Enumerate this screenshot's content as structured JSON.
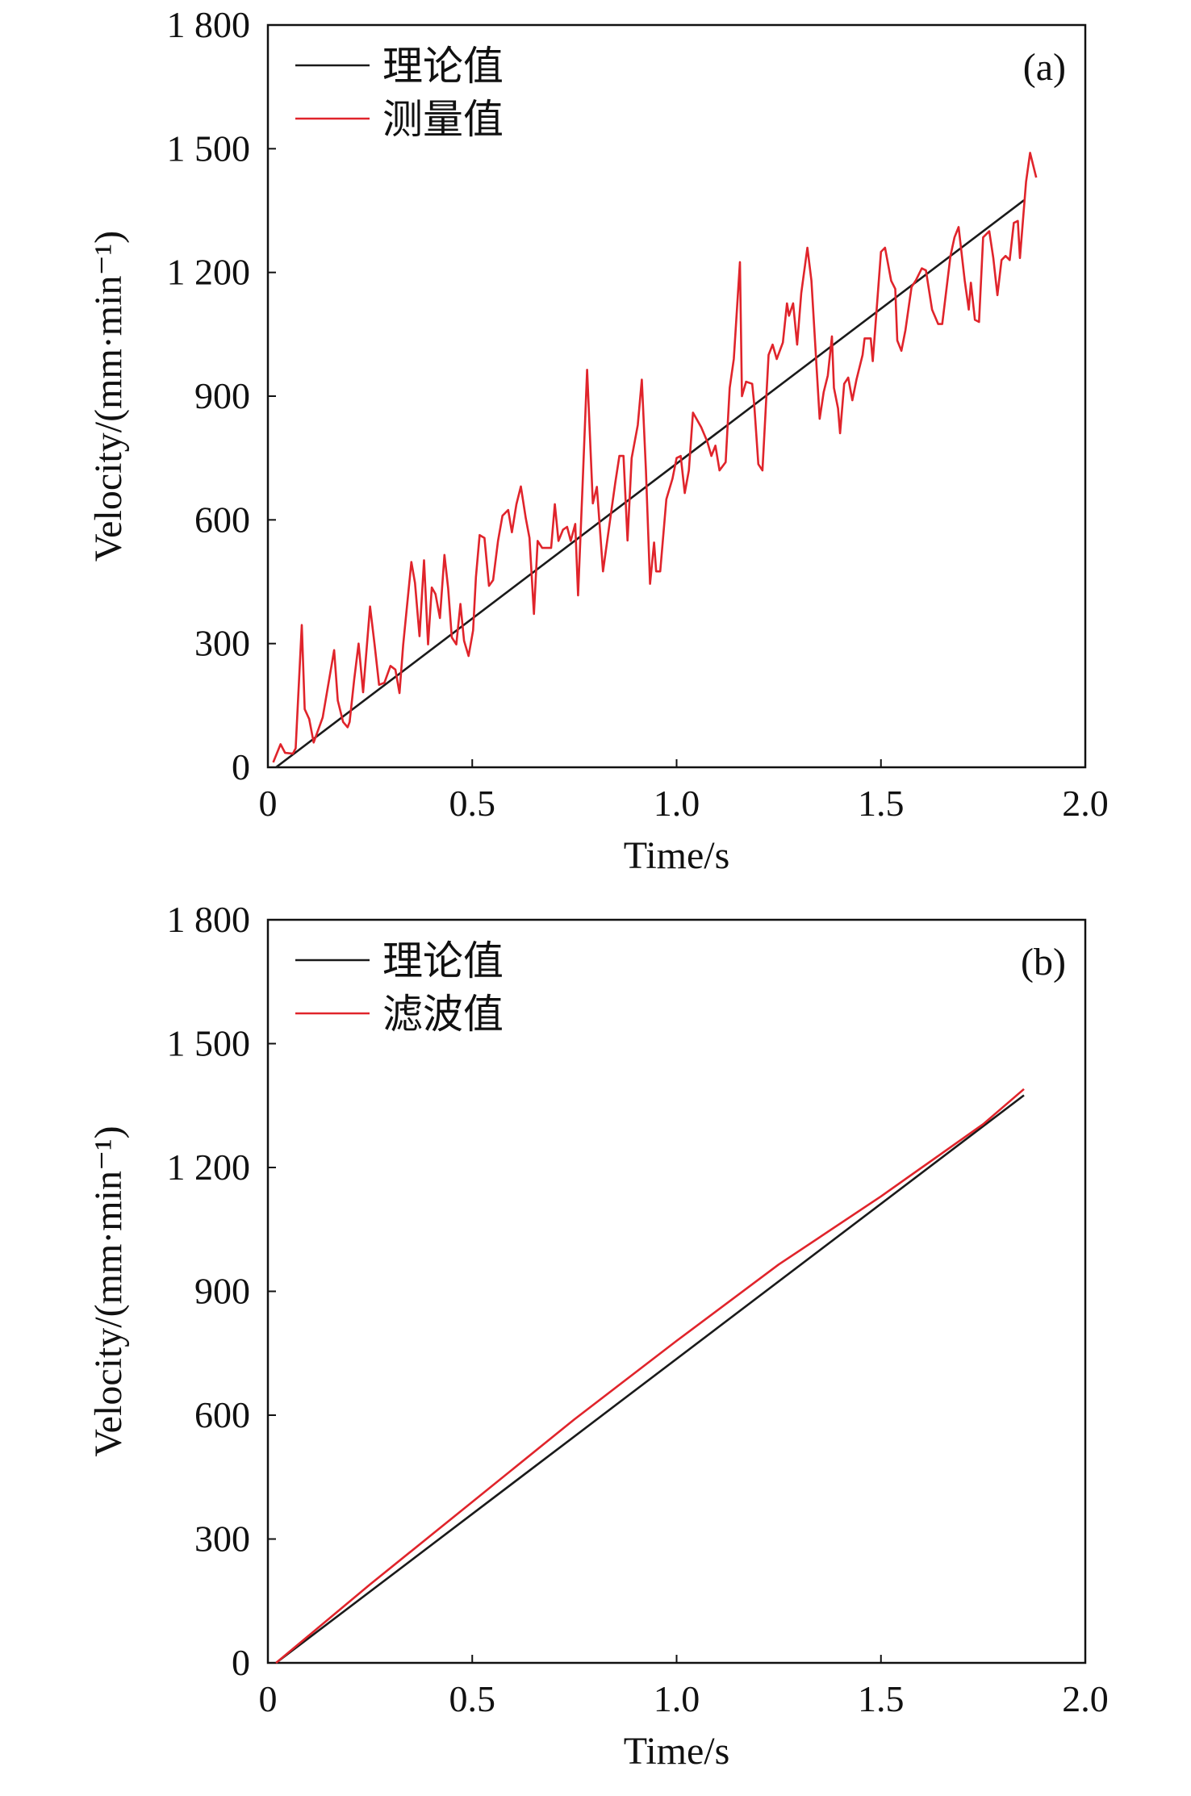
{
  "colors": {
    "theory": "#1a1a1a",
    "measured": "#e0242b",
    "axis": "#111111"
  },
  "chart_data": [
    {
      "type": "line",
      "panel_label": "(a)",
      "xlabel": "Time/s",
      "ylabel": "Velocity/(mm·min⁻¹)",
      "xlim": [
        0,
        2.0
      ],
      "ylim": [
        0,
        1800
      ],
      "xticks": [
        0,
        0.5,
        1.0,
        1.5,
        2.0
      ],
      "xtick_labels": [
        "0",
        "0.5",
        "1.0",
        "1.5",
        "2.0"
      ],
      "yticks": [
        0,
        300,
        600,
        900,
        1200,
        1500,
        1800
      ],
      "ytick_labels": [
        "0",
        "300",
        "600",
        "900",
        "1 200",
        "1 500",
        "1 800"
      ],
      "legend_position": "top-left",
      "series": [
        {
          "name": "理论值",
          "color_key": "theory",
          "x": [
            0.02,
            1.85
          ],
          "y": [
            0,
            1375
          ]
        },
        {
          "name": "测量值",
          "color_key": "measured",
          "x": [
            0.013,
            0.031,
            0.042,
            0.061,
            0.068,
            0.083,
            0.09,
            0.101,
            0.112,
            0.134,
            0.162,
            0.171,
            0.184,
            0.195,
            0.2,
            0.211,
            0.222,
            0.233,
            0.25,
            0.261,
            0.272,
            0.285,
            0.3,
            0.312,
            0.322,
            0.331,
            0.351,
            0.36,
            0.371,
            0.382,
            0.392,
            0.401,
            0.41,
            0.421,
            0.432,
            0.441,
            0.45,
            0.461,
            0.471,
            0.48,
            0.491,
            0.502,
            0.509,
            0.518,
            0.53,
            0.541,
            0.551,
            0.563,
            0.574,
            0.588,
            0.597,
            0.608,
            0.619,
            0.631,
            0.64,
            0.651,
            0.66,
            0.671,
            0.693,
            0.702,
            0.711,
            0.722,
            0.732,
            0.741,
            0.752,
            0.759,
            0.77,
            0.781,
            0.795,
            0.805,
            0.82,
            0.84,
            0.85,
            0.86,
            0.87,
            0.88,
            0.89,
            0.905,
            0.915,
            0.925,
            0.935,
            0.945,
            0.95,
            0.96,
            0.975,
            0.99,
            1.0,
            1.01,
            1.02,
            1.03,
            1.04,
            1.06,
            1.075,
            1.085,
            1.095,
            1.105,
            1.12,
            1.13,
            1.14,
            1.155,
            1.16,
            1.17,
            1.185,
            1.19,
            1.2,
            1.21,
            1.225,
            1.235,
            1.245,
            1.26,
            1.27,
            1.275,
            1.285,
            1.295,
            1.305,
            1.32,
            1.33,
            1.35,
            1.36,
            1.37,
            1.38,
            1.385,
            1.395,
            1.4,
            1.41,
            1.42,
            1.43,
            1.44,
            1.455,
            1.46,
            1.475,
            1.48,
            1.5,
            1.51,
            1.525,
            1.535,
            1.54,
            1.55,
            1.56,
            1.575,
            1.585,
            1.6,
            1.61,
            1.625,
            1.64,
            1.65,
            1.67,
            1.68,
            1.69,
            1.705,
            1.715,
            1.72,
            1.73,
            1.74,
            1.75,
            1.765,
            1.775,
            1.785,
            1.795,
            1.805,
            1.815,
            1.825,
            1.835,
            1.84,
            1.855,
            1.865,
            1.88
          ],
          "y": [
            12,
            56,
            35,
            33,
            46,
            345,
            141,
            117,
            60,
            121,
            284,
            162,
            110,
            97,
            110,
            212,
            300,
            182,
            390,
            298,
            200,
            205,
            246,
            237,
            180,
            298,
            498,
            447,
            318,
            502,
            298,
            436,
            420,
            362,
            515,
            434,
            315,
            298,
            396,
            307,
            270,
            332,
            461,
            563,
            556,
            440,
            454,
            549,
            610,
            624,
            570,
            638,
            681,
            604,
            556,
            372,
            549,
            532,
            532,
            638,
            549,
            576,
            583,
            549,
            590,
            417,
            685,
            964,
            640,
            680,
            475,
            620,
            690,
            755,
            755,
            550,
            750,
            830,
            940,
            720,
            445,
            545,
            475,
            475,
            650,
            700,
            750,
            755,
            665,
            720,
            860,
            825,
            790,
            755,
            780,
            720,
            740,
            920,
            990,
            1225,
            900,
            935,
            930,
            880,
            735,
            720,
            1000,
            1025,
            990,
            1030,
            1125,
            1095,
            1125,
            1025,
            1150,
            1260,
            1180,
            845,
            910,
            950,
            1045,
            920,
            870,
            810,
            930,
            945,
            890,
            940,
            1000,
            1040,
            1040,
            985,
            1250,
            1260,
            1180,
            1160,
            1035,
            1010,
            1060,
            1165,
            1180,
            1210,
            1205,
            1110,
            1075,
            1075,
            1240,
            1285,
            1310,
            1180,
            1110,
            1175,
            1085,
            1080,
            1285,
            1300,
            1235,
            1145,
            1230,
            1240,
            1230,
            1320,
            1325,
            1235,
            1420,
            1490,
            1430
          ]
        }
      ]
    },
    {
      "type": "line",
      "panel_label": "(b)",
      "xlabel": "Time/s",
      "ylabel": "Velocity/(mm·min⁻¹)",
      "xlim": [
        0,
        2.0
      ],
      "ylim": [
        0,
        1800
      ],
      "xticks": [
        0,
        0.5,
        1.0,
        1.5,
        2.0
      ],
      "xtick_labels": [
        "0",
        "0.5",
        "1.0",
        "1.5",
        "2.0"
      ],
      "yticks": [
        0,
        300,
        600,
        900,
        1200,
        1500,
        1800
      ],
      "ytick_labels": [
        "0",
        "300",
        "600",
        "900",
        "1 200",
        "1 500",
        "1 800"
      ],
      "legend_position": "top-left",
      "series": [
        {
          "name": "理论值",
          "color_key": "theory",
          "x": [
            0.02,
            1.85
          ],
          "y": [
            0,
            1375
          ]
        },
        {
          "name": "滤波值",
          "color_key": "measured",
          "x": [
            0.02,
            0.25,
            0.5,
            0.75,
            1.0,
            1.25,
            1.5,
            1.75,
            1.85
          ],
          "y": [
            0,
            190,
            390,
            590,
            780,
            965,
            1130,
            1305,
            1390
          ]
        }
      ]
    }
  ]
}
